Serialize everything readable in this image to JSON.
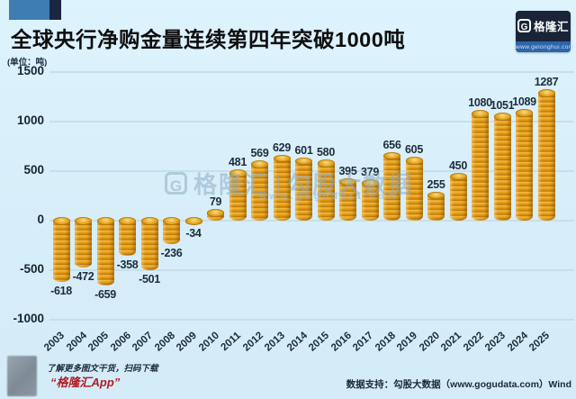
{
  "title": "全球央行净购金量连续第四年突破1000吨",
  "unit_label": "(单位：吨)",
  "logo": {
    "g_glyph": "G",
    "name": "格隆汇",
    "url": "www.gelonghui.com"
  },
  "watermark": {
    "g_glyph": "G",
    "brand": "格隆汇",
    "divider": "|",
    "partner": "勾股大数据",
    "url": "www.gogudata.com"
  },
  "footer": {
    "qr_hint": "了解更多图文干货，扫码下载",
    "app_name": "“格隆汇App”",
    "data_support": "数据支持：勾股大数据（www.gogudata.com）Wind"
  },
  "colors": {
    "background": "#D7EEFA",
    "coin_gold": "#E79A14",
    "coin_highlight": "#F6C050",
    "coin_shadow": "#B3750A",
    "logo_navy": "#1A2438",
    "logo_blue_strip": "#2E64A8",
    "deco_blue": "#3D7DB2",
    "accent_red": "#AE1C24",
    "gridline": "#C2D9E4",
    "text_dark": "#1C2B3A"
  },
  "chart_data": {
    "type": "bar",
    "title": "全球央行净购金量连续第四年突破1000吨",
    "ylabel": "(单位：吨)",
    "categories": [
      "2003",
      "2004",
      "2005",
      "2006",
      "2007",
      "2008",
      "2009",
      "2010",
      "2011",
      "2012",
      "2013",
      "2014",
      "2015",
      "2016",
      "2017",
      "2018",
      "2019",
      "2020",
      "2021",
      "2022",
      "2023",
      "2024",
      "2025"
    ],
    "values": [
      -618,
      -472,
      -659,
      -358,
      -501,
      -236,
      -34,
      79,
      481,
      569,
      629,
      601,
      580,
      395,
      379,
      656,
      605,
      255,
      450,
      1080,
      1051,
      1089,
      1287
    ],
    "ylim": [
      -1000,
      1500
    ],
    "yticks": [
      1500,
      1000,
      500,
      0,
      -500,
      -1000
    ],
    "grid": true,
    "legend": null,
    "bar_style": "gold-coin-stack",
    "data_labels": true
  }
}
